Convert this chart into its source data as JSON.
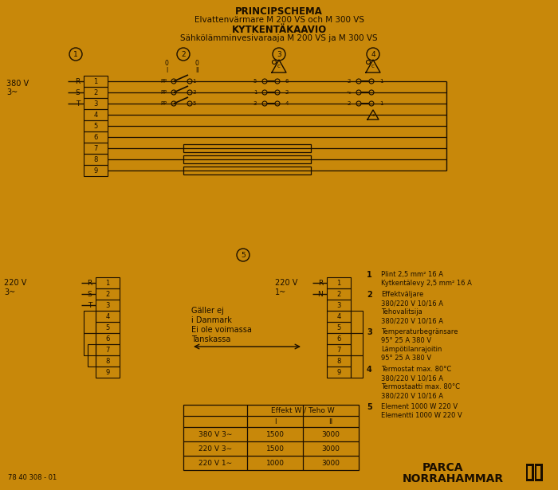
{
  "bg_color": "#C8880A",
  "dk_color": "#1a0e00",
  "title1": "PRINCIPSCHEMA",
  "title2": "Elvattenvärmare M 200 VS och M 300 VS",
  "title3": "KYTKENTÄKAAVIO",
  "title4": "Sähkölämminvesivaraaja M 200 VS ja M 300 VS",
  "legend": [
    [
      "1",
      "Plint 2,5 mm² 16 A",
      "Kytkentälevy 2,5 mm² 16 A"
    ],
    [
      "2",
      "Effektväljare",
      "380/220 V 10/16 A",
      "Tehovalitsija",
      "380/220 V 10/16 A"
    ],
    [
      "3",
      "Temperaturbegränsare",
      "95° 25 A 380 V",
      "Lämpötilanrajoitin",
      "95° 25 A 380 V"
    ],
    [
      "4",
      "Termostat max. 80°C",
      "380/220 V 10/16 A",
      "Termostaatti max. 80°C",
      "380/220 V 10/16 A"
    ],
    [
      "5",
      "Element 1000 W 220 V",
      "Elementti 1000 W 220 V"
    ]
  ],
  "table_rows": [
    [
      "380 V 3∼",
      "1500",
      "3000"
    ],
    [
      "220 V 3∼",
      "1500",
      "3000"
    ],
    [
      "220 V 1∼",
      "1000",
      "3000"
    ]
  ],
  "footer_code": "78 40 308 - 01",
  "brand1": "PARCA",
  "brand2": "NORRAHAMMAR"
}
